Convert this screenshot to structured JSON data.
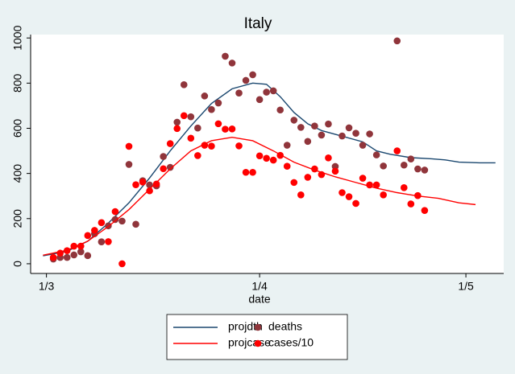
{
  "chart_data": {
    "type": "line",
    "title": "Italy",
    "x_label": "date",
    "xlim": [
      -2.3,
      66.5
    ],
    "xticks": [
      {
        "value": 0,
        "label": "1/3"
      },
      {
        "value": 31,
        "label": "1/4"
      },
      {
        "value": 61,
        "label": "1/5"
      }
    ],
    "ylim": [
      -43,
      1015
    ],
    "yticks": [
      0,
      200,
      400,
      600,
      800,
      1000
    ],
    "grid": false,
    "legend": "bottom",
    "series": [
      {
        "name": "projdth",
        "type": "line",
        "color": "#1a476f",
        "x": [
          -0.5,
          3,
          6,
          9,
          12,
          15,
          18,
          21,
          24,
          27,
          30,
          32,
          34,
          36,
          38,
          40,
          43,
          46,
          48,
          50,
          53,
          56,
          58,
          60,
          63,
          65.3
        ],
        "values": [
          35,
          55,
          100,
          180,
          270,
          380,
          500,
          610,
          710,
          775,
          800,
          795,
          740,
          670,
          620,
          590,
          565,
          540,
          500,
          485,
          470,
          465,
          460,
          450,
          447,
          447
        ]
      },
      {
        "name": "deaths",
        "type": "scatter",
        "color": "#90353b",
        "x": [
          1,
          2,
          3,
          4,
          5,
          6,
          7,
          8,
          9,
          10,
          11,
          12,
          13,
          14,
          15,
          16,
          17,
          18,
          19,
          20,
          21,
          22,
          23,
          24,
          25,
          26,
          27,
          28,
          29,
          30,
          31,
          32,
          33,
          34,
          35,
          36,
          37,
          38,
          39,
          40,
          41,
          42,
          43,
          44,
          45,
          46,
          47,
          48,
          49,
          51,
          52,
          53,
          54,
          55
        ],
        "values": [
          21,
          28,
          28,
          39,
          53,
          36,
          133,
          97,
          168,
          196,
          189,
          440,
          175,
          368,
          349,
          345,
          475,
          427,
          627,
          793,
          651,
          601,
          743,
          683,
          712,
          919,
          889,
          756,
          812,
          837,
          727,
          760,
          766,
          681,
          525,
          636,
          604,
          542,
          610,
          570,
          619,
          431,
          566,
          602,
          578,
          525,
          575,
          482,
          433,
          987,
          437,
          464,
          420,
          415
        ]
      },
      {
        "name": "projcase",
        "type": "line",
        "color": "#ff0000",
        "x": [
          -0.5,
          3,
          6,
          9,
          12,
          15,
          18,
          21,
          24,
          27,
          30,
          33,
          36,
          39,
          42,
          45,
          48,
          51,
          54,
          57,
          60,
          62.4
        ],
        "values": [
          38,
          60,
          100,
          165,
          240,
          330,
          420,
          500,
          545,
          560,
          545,
          500,
          450,
          415,
          385,
          360,
          335,
          315,
          300,
          290,
          270,
          262
        ]
      },
      {
        "name": "cases/10",
        "type": "scatter",
        "color": "#ff0000",
        "x": [
          1,
          2,
          3,
          4,
          5,
          6,
          7,
          8,
          9,
          10,
          11,
          12,
          13,
          14,
          15,
          16,
          17,
          18,
          19,
          20,
          21,
          22,
          23,
          24,
          25,
          26,
          27,
          28,
          29,
          30,
          31,
          32,
          33,
          34,
          35,
          36,
          37,
          38,
          39,
          40,
          41,
          42,
          43,
          44,
          45,
          46,
          47,
          48,
          49,
          51,
          52,
          53,
          54,
          55
        ],
        "values": [
          28,
          47,
          58,
          78,
          78,
          125,
          148,
          182,
          98,
          231,
          0,
          520,
          350,
          362,
          323,
          353,
          421,
          532,
          599,
          656,
          556,
          479,
          525,
          521,
          620,
          596,
          597,
          522,
          405,
          405,
          478,
          467,
          459,
          480,
          432,
          360,
          305,
          383,
          420,
          395,
          469,
          410,
          315,
          297,
          267,
          379,
          349,
          349,
          305,
          500,
          337,
          265,
          302,
          236
        ]
      }
    ]
  }
}
